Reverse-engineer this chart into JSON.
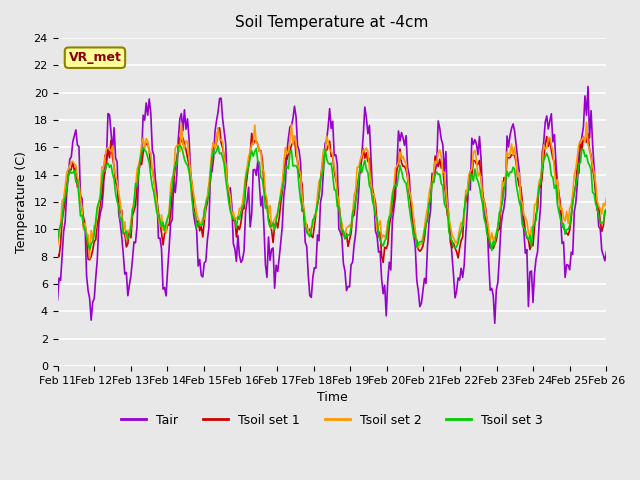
{
  "title": "Soil Temperature at -4cm",
  "xlabel": "Time",
  "ylabel": "Temperature (C)",
  "ylim": [
    0,
    24
  ],
  "yticks": [
    0,
    2,
    4,
    6,
    8,
    10,
    12,
    14,
    16,
    18,
    20,
    22,
    24
  ],
  "x_labels": [
    "Feb 11",
    "Feb 12",
    "Feb 13",
    "Feb 14",
    "Feb 15",
    "Feb 16",
    "Feb 17",
    "Feb 18",
    "Feb 19",
    "Feb 20",
    "Feb 21",
    "Feb 22",
    "Feb 23",
    "Feb 24",
    "Feb 25",
    "Feb 26"
  ],
  "annotation_text": "VR_met",
  "annotation_color": "#8B0000",
  "annotation_bg": "#FFFF99",
  "annotation_border": "#8B8000",
  "bg_color": "#E8E8E8",
  "plot_bg": "#E8E8E8",
  "grid_color": "#FFFFFF",
  "line_colors": {
    "Tair": "#9900CC",
    "Tsoil1": "#CC0000",
    "Tsoil2": "#FF9900",
    "Tsoil3": "#00CC00"
  },
  "legend_labels": [
    "Tair",
    "Tsoil set 1",
    "Tsoil set 2",
    "Tsoil set 3"
  ]
}
